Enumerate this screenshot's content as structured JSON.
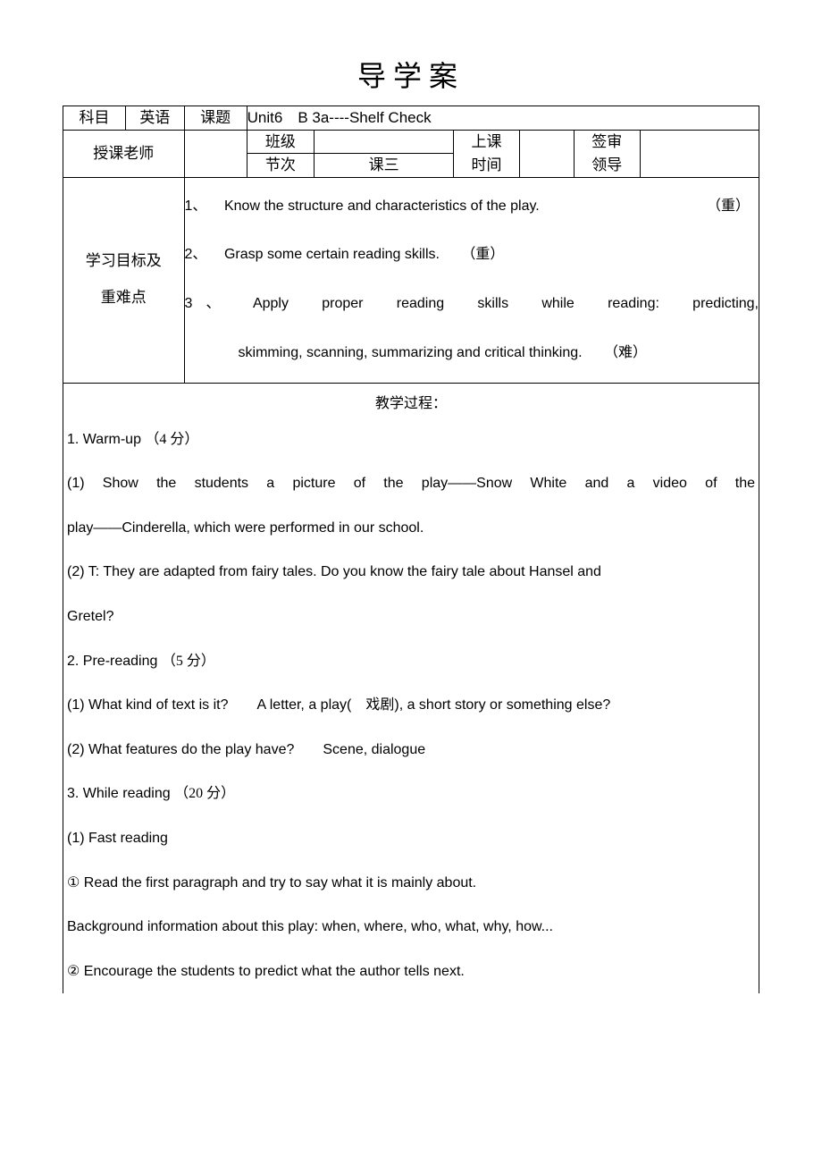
{
  "title": "导学案",
  "header": {
    "subject_label": "科目",
    "subject_value": "英语",
    "topic_label": "课题",
    "topic_value": "Unit6 B 3a----Shelf Check",
    "teacher_label": "授课老师",
    "class_label": "班级",
    "class_value": "",
    "session_label": "节次",
    "session_value": "课三",
    "time_label_1": "上课",
    "time_label_2": "时间",
    "time_value": "",
    "approve_label_1": "签审",
    "approve_label_2": "领导",
    "approve_value": ""
  },
  "goals": {
    "label_1": "学习目标及",
    "label_2": "重难点",
    "items": [
      {
        "num": "1、",
        "text": "Know the structure and characteristics of the play.",
        "tag": "（重）"
      },
      {
        "num": "2、",
        "text": "Grasp some certain reading skills.",
        "tag": "（重）"
      },
      {
        "num": "3、",
        "text_a": "Apply proper reading skills while reading: predicting,",
        "text_b": "skimming, scanning, summarizing and critical thinking.",
        "tag": "（难）"
      }
    ]
  },
  "process": {
    "heading": "教学过程：",
    "lines": [
      {
        "t": "1. Warm-up ",
        "cn": "（4 分）"
      },
      {
        "t": "(1) Show the students  a picture  of the play——Snow White  and a video of the",
        "justify": true
      },
      {
        "t": "play——Cinderella, which were performed in our school."
      },
      {
        "t": "(2) T: They are adapted from fairy tales. Do you know the fairy tale about Hansel and"
      },
      {
        "t": "Gretel?"
      },
      {
        "t": "2. Pre-reading  ",
        "cn": "（5 分）"
      },
      {
        "t": "(1) What kind of text is it?  A letter, a play( ",
        "cn": "戏剧",
        "t2": "), a short story or something else?"
      },
      {
        "t": "(2) What features do the play have?  Scene, dialogue"
      },
      {
        "t": "3. While reading  ",
        "cn": "（20 分）"
      },
      {
        "t": "(1) Fast reading"
      },
      {
        "circ": "①",
        "t": " Read the first paragraph and try to say what it is mainly about."
      },
      {
        "t": "Background information about this play: when, where, who, what, why, how..."
      },
      {
        "circ": "②",
        "t": " Encourage the students to predict what the author tells next."
      }
    ]
  },
  "colors": {
    "text": "#000000",
    "border": "#000000",
    "background": "#ffffff"
  }
}
